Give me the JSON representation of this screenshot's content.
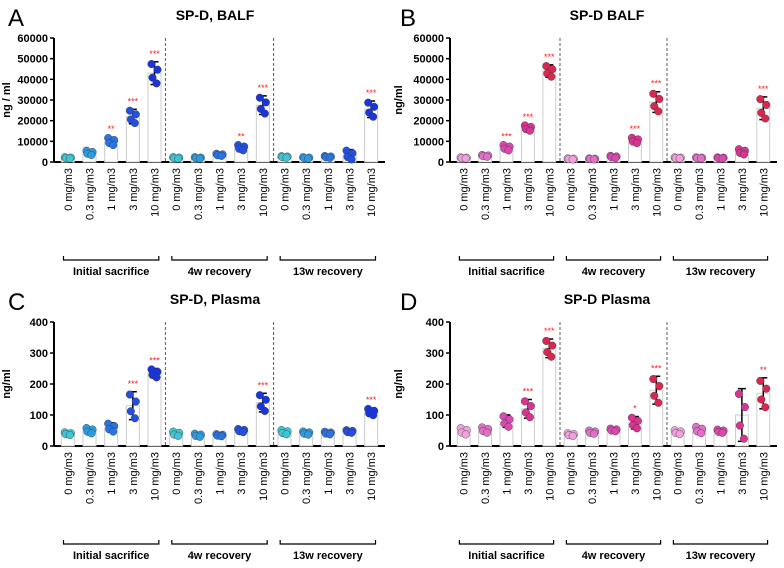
{
  "chart_data": [
    {
      "letter": "A",
      "title": "SP-D, BALF",
      "type": "bar",
      "ylabel": "ng / ml",
      "ylim": [
        0,
        60000
      ],
      "yticks": [
        0,
        10000,
        20000,
        30000,
        40000,
        50000,
        60000
      ],
      "colors": [
        "#3fc6d6",
        "#2e9be0",
        "#2a73e2",
        "#2350e0",
        "#1a35dc"
      ],
      "means": [
        2000,
        4500,
        10000,
        22000,
        43000,
        2000,
        2000,
        3500,
        7000,
        27500,
        2500,
        2000,
        2500,
        3500,
        25500
      ],
      "sd": [
        400,
        1200,
        2000,
        3500,
        5500,
        400,
        400,
        600,
        1500,
        4500,
        400,
        400,
        500,
        2500,
        4000
      ],
      "stars": [
        "",
        "",
        "**",
        "***",
        "***",
        "",
        "",
        "",
        "**",
        "***",
        "",
        "",
        "",
        "",
        "***"
      ]
    },
    {
      "letter": "B",
      "title": "SP-D BALF",
      "type": "bar",
      "ylabel": "ng/ml",
      "ylim": [
        0,
        60000
      ],
      "yticks": [
        0,
        10000,
        20000,
        30000,
        40000,
        50000,
        60000
      ],
      "colors": [
        "#f0a0dc",
        "#e070c8",
        "#d84ab0",
        "#d83490",
        "#d82850"
      ],
      "means": [
        2000,
        3000,
        7000,
        16500,
        44000,
        1500,
        1500,
        2500,
        10500,
        29000,
        2000,
        2000,
        2000,
        5000,
        26000
      ],
      "sd": [
        300,
        500,
        1500,
        1500,
        3000,
        300,
        300,
        600,
        1500,
        5000,
        300,
        300,
        300,
        1500,
        5500
      ],
      "stars": [
        "",
        "",
        "***",
        "***",
        "***",
        "",
        "",
        "",
        "***",
        "***",
        "",
        "",
        "",
        "",
        "***"
      ]
    },
    {
      "letter": "C",
      "title": "SP-D, Plasma",
      "type": "bar",
      "ylabel": "ng/ml",
      "ylim": [
        0,
        400
      ],
      "yticks": [
        0,
        100,
        200,
        300,
        400
      ],
      "colors": [
        "#3fc6d6",
        "#2e9be0",
        "#2a73e2",
        "#2350e0",
        "#1a35dc"
      ],
      "means": [
        40,
        50,
        60,
        130,
        235,
        40,
        35,
        35,
        50,
        140,
        45,
        42,
        42,
        47,
        110
      ],
      "sd": [
        5,
        10,
        15,
        45,
        15,
        8,
        6,
        4,
        6,
        30,
        8,
        6,
        5,
        5,
        12
      ],
      "stars": [
        "",
        "",
        "",
        "***",
        "***",
        "",
        "",
        "",
        "",
        "***",
        "",
        "",
        "",
        "",
        "***"
      ]
    },
    {
      "letter": "D",
      "title": "SP-D Plasma",
      "type": "bar",
      "ylabel": "ng/ml",
      "ylim": [
        0,
        400
      ],
      "yticks": [
        0,
        100,
        200,
        300,
        400
      ],
      "colors": [
        "#f0a0dc",
        "#e070c8",
        "#d84ab0",
        "#d83490",
        "#d82850"
      ],
      "means": [
        48,
        52,
        80,
        120,
        315,
        37,
        45,
        52,
        75,
        180,
        45,
        52,
        48,
        100,
        170
      ],
      "sd": [
        12,
        10,
        20,
        30,
        30,
        5,
        6,
        5,
        20,
        45,
        7,
        12,
        6,
        85,
        50
      ],
      "stars": [
        "",
        "",
        "",
        "***",
        "***",
        "",
        "",
        "",
        "*",
        "***",
        "",
        "",
        "",
        "",
        "**"
      ]
    }
  ],
  "categories": [
    "0 mg/m3",
    "0.3 mg/m3",
    "1 mg/m3",
    "3 mg/m3",
    "10 mg/m3",
    "0 mg/m3",
    "0.3 mg/m3",
    "1 mg/m3",
    "3 mg/m3",
    "10 mg/m3",
    "0 mg/m3",
    "0.3 mg/m3",
    "1 mg/m3",
    "3 mg/m3",
    "10 mg/m3"
  ],
  "groups": [
    "Initial sacrifice",
    "4w recovery",
    "13w recovery"
  ],
  "star_color": "#ff2020"
}
